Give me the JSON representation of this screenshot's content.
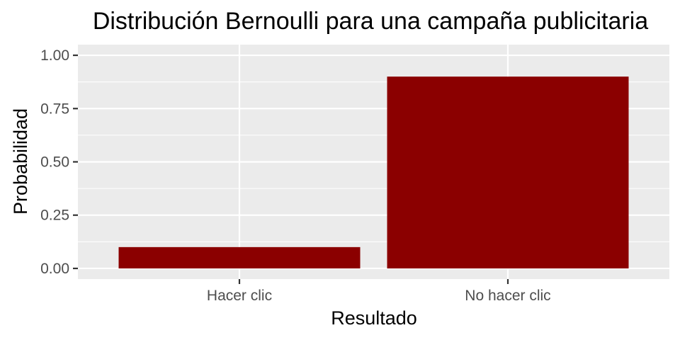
{
  "chart_data": {
    "type": "bar",
    "title": "Distribución Bernoulli para una campaña publicitaria",
    "xlabel": "Resultado",
    "ylabel": "Probabilidad",
    "categories": [
      "Hacer clic",
      "No hacer clic"
    ],
    "values": [
      0.1,
      0.9
    ],
    "ylim": [
      -0.05,
      1.05
    ],
    "yticks": [
      0.0,
      0.25,
      0.5,
      0.75,
      1.0
    ],
    "ytick_labels": [
      "0.00",
      "0.25",
      "0.50",
      "0.75",
      "1.00"
    ],
    "grid": true,
    "legend": "none",
    "colors": {
      "bar": "#8b0000",
      "panel_background": "#ebebeb",
      "grid": "#ffffff",
      "tick": "#333333",
      "tick_label": "#4d4d4d"
    }
  }
}
